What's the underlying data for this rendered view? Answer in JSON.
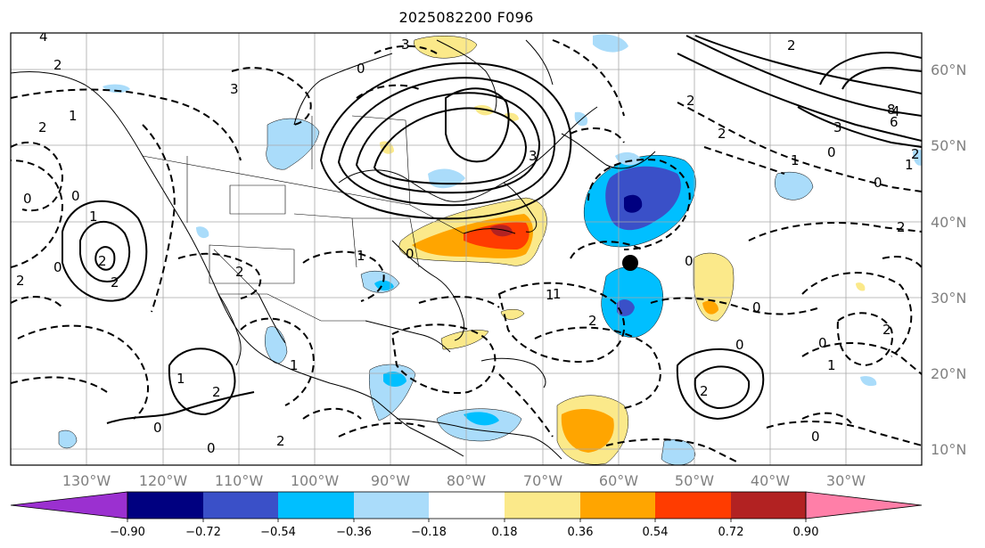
{
  "title": "2025082200 F096",
  "longitude_labels": [
    "130°W",
    "120°W",
    "110°W",
    "100°W",
    "90°W",
    "80°W",
    "70°W",
    "60°W",
    "50°W",
    "40°W",
    "30°W"
  ],
  "latitude_labels": [
    "60°N",
    "50°N",
    "40°N",
    "30°N",
    "20°N",
    "10°N"
  ],
  "colorbar": {
    "tick_labels": [
      "−0.90",
      "−0.72",
      "−0.54",
      "−0.36",
      "−0.18",
      "0.18",
      "0.36",
      "0.54",
      "0.72",
      "0.90"
    ],
    "colors": [
      "#9b30d0",
      "#000080",
      "#3a50c8",
      "#00bfff",
      "#aadcfa",
      "#ffffff",
      "#fbe98a",
      "#ffa500",
      "#ff3c00",
      "#b22222",
      "#ff7fa8"
    ]
  },
  "colors": {
    "grid": "#a9a9a9",
    "coast": "#000000",
    "contour": "#000000",
    "tick_label": "#808080"
  },
  "marker": {
    "label": "black dot",
    "lon": "62°W",
    "lat": "34.5°N"
  },
  "contour_labels": [
    "2",
    "4",
    "3",
    "2",
    "0",
    "1",
    "2",
    "2",
    "0",
    "1",
    "2",
    "2",
    "3",
    "3",
    "4",
    "6",
    "8",
    "0",
    "1",
    "2",
    "2",
    "0",
    "3",
    "0",
    "1",
    "2",
    "0",
    "1",
    "2",
    "0",
    "2",
    "0",
    "1",
    "2",
    "0",
    "2",
    "1",
    "0",
    "2",
    "0",
    "1",
    "2",
    "0",
    "1",
    "2",
    "0",
    "1",
    "0"
  ]
}
